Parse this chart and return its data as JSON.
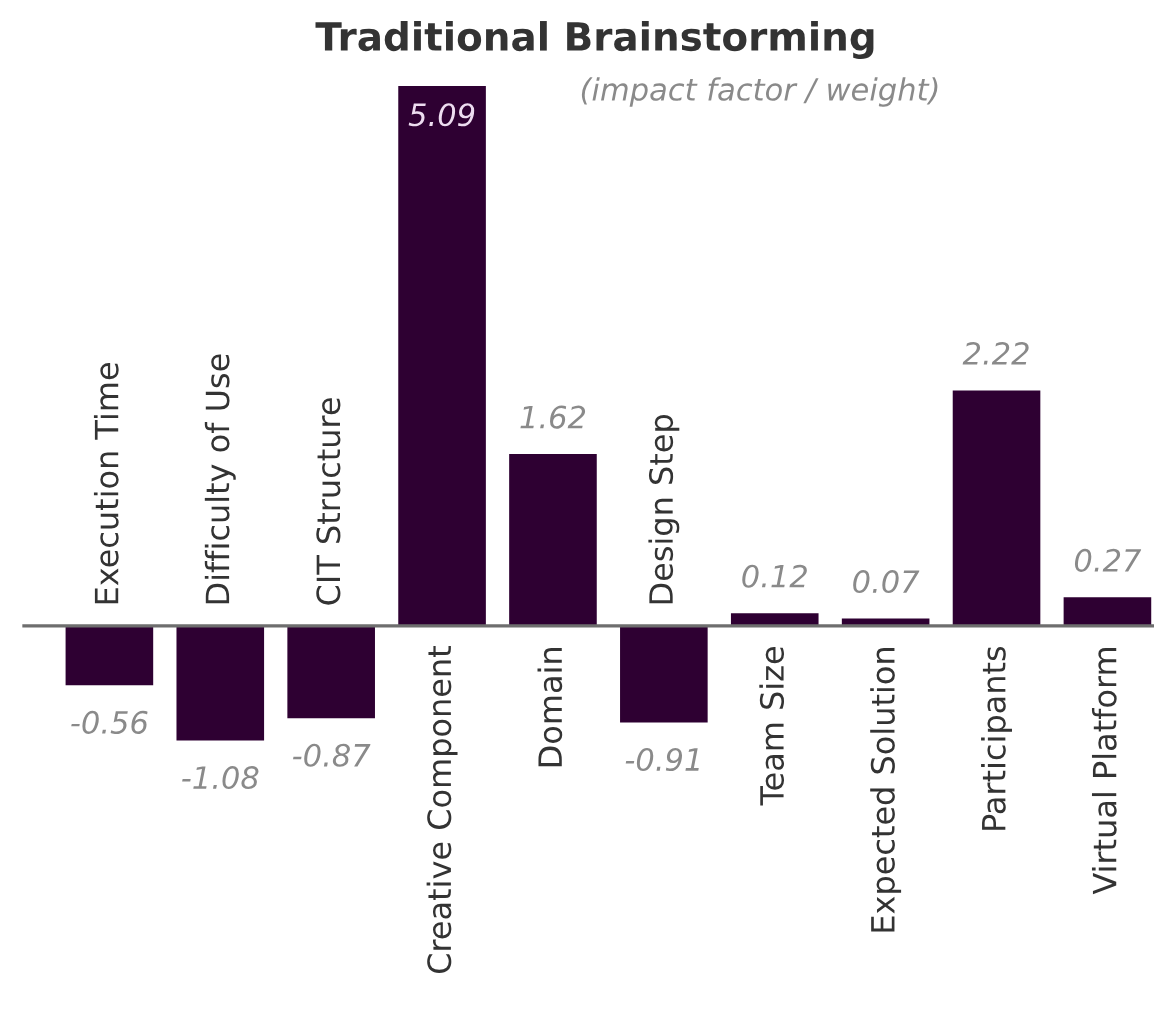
{
  "chart_data": {
    "type": "bar",
    "title": "Traditional Brainstorming",
    "subtitle": "(impact factor / weight)",
    "categories": [
      "Execution Time",
      "Difficulty of Use",
      "CIT Structure",
      "Creative Component",
      "Domain",
      "Design Step",
      "Team Size",
      "Expected Solution",
      "Participants",
      "Virtual Platform"
    ],
    "values": [
      -0.56,
      -1.08,
      -0.87,
      5.09,
      1.62,
      -0.91,
      0.12,
      0.07,
      2.22,
      0.27
    ],
    "color": "#2e0032",
    "data_labels": true,
    "tick_labels": "x"
  }
}
